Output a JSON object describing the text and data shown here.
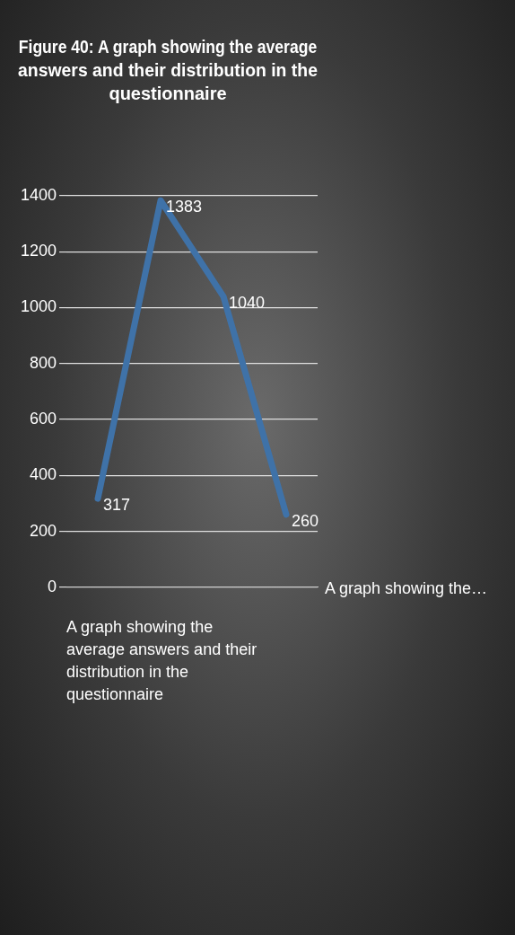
{
  "chart_data": {
    "type": "line",
    "title": "Figure 40: A graph showing the average answers and their distribution in the questionnaire",
    "xlabel": "A graph showing the average answers and their distribution in the questionnaire",
    "annotations": [
      "A graph showing the…"
    ],
    "categories": [
      null,
      null,
      null,
      null
    ],
    "series": [
      {
        "color": "#3f72a8",
        "values": [
          317,
          1383,
          1040,
          260
        ]
      }
    ],
    "ylim": [
      0,
      1400
    ],
    "yticks": [
      0,
      200,
      400,
      600,
      800,
      1000,
      1200,
      1400
    ],
    "grid": "y",
    "legend": false,
    "data_labels": true,
    "marker": "none",
    "line_style": "solid"
  }
}
